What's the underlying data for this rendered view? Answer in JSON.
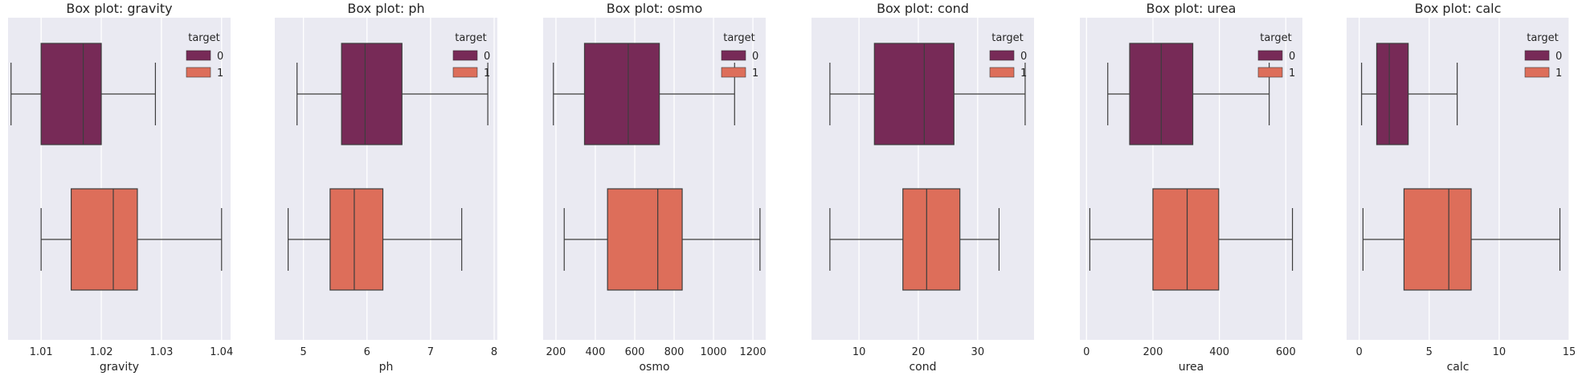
{
  "figure": {
    "background": "#ffffff",
    "plot_background": "#eaeaf2",
    "grid_color": "#ffffff",
    "line_color": "#3d3d3d"
  },
  "chart_data": [
    {
      "type": "box",
      "title": "Box plot: gravity",
      "xlabel": "gravity",
      "xlim": [
        1.0045,
        1.0415
      ],
      "ticks": [
        1.01,
        1.02,
        1.03,
        1.04
      ],
      "tick_labels": [
        "1.01",
        "1.02",
        "1.03",
        "1.04"
      ],
      "legend": {
        "title": "target",
        "position": "upper right",
        "entries": [
          "0",
          "1"
        ]
      },
      "series": [
        {
          "name": "0",
          "color": "#772a57",
          "whisker_low": 1.005,
          "q1": 1.01,
          "median": 1.017,
          "q3": 1.02,
          "whisker_high": 1.029
        },
        {
          "name": "1",
          "color": "#dd6e5a",
          "whisker_low": 1.01,
          "q1": 1.015,
          "median": 1.022,
          "q3": 1.026,
          "whisker_high": 1.04
        }
      ]
    },
    {
      "type": "box",
      "title": "Box plot: ph",
      "xlabel": "ph",
      "xlim": [
        4.55,
        8.05
      ],
      "ticks": [
        5,
        6,
        7,
        8
      ],
      "tick_labels": [
        "5",
        "6",
        "7",
        "8"
      ],
      "legend": {
        "title": "target",
        "position": "upper right",
        "entries": [
          "0",
          "1"
        ]
      },
      "series": [
        {
          "name": "0",
          "color": "#772a57",
          "whisker_low": 4.9,
          "q1": 5.6,
          "median": 5.97,
          "q3": 6.55,
          "whisker_high": 7.9
        },
        {
          "name": "1",
          "color": "#dd6e5a",
          "whisker_low": 4.76,
          "q1": 5.42,
          "median": 5.8,
          "q3": 6.25,
          "whisker_high": 7.49
        }
      ]
    },
    {
      "type": "box",
      "title": "Box plot: osmo",
      "xlabel": "osmo",
      "xlim": [
        135,
        1265
      ],
      "ticks": [
        200,
        400,
        600,
        800,
        1000,
        1200
      ],
      "tick_labels": [
        "200",
        "400",
        "600",
        "800",
        "1000",
        "1200"
      ],
      "legend": {
        "title": "target",
        "position": "upper right",
        "entries": [
          "0",
          "1"
        ]
      },
      "series": [
        {
          "name": "0",
          "color": "#772a57",
          "whisker_low": 187,
          "q1": 345,
          "median": 567,
          "q3": 725,
          "whisker_high": 1107
        },
        {
          "name": "1",
          "color": "#dd6e5a",
          "whisker_low": 242,
          "q1": 462,
          "median": 717,
          "q3": 841,
          "whisker_high": 1236
        }
      ]
    },
    {
      "type": "box",
      "title": "Box plot: cond",
      "xlabel": "cond",
      "xlim": [
        2.0,
        39.5
      ],
      "ticks": [
        10,
        20,
        30
      ],
      "tick_labels": [
        "10",
        "20",
        "30"
      ],
      "legend": {
        "title": "target",
        "position": "upper right",
        "entries": [
          "0",
          "1"
        ]
      },
      "series": [
        {
          "name": "0",
          "color": "#772a57",
          "whisker_low": 5.1,
          "q1": 12.6,
          "median": 21.0,
          "q3": 26.0,
          "whisker_high": 38.0
        },
        {
          "name": "1",
          "color": "#dd6e5a",
          "whisker_low": 5.1,
          "q1": 17.4,
          "median": 21.4,
          "q3": 27.0,
          "whisker_high": 33.6
        }
      ]
    },
    {
      "type": "box",
      "title": "Box plot: urea",
      "xlabel": "urea",
      "xlim": [
        -20,
        650
      ],
      "ticks": [
        0,
        200,
        400,
        600
      ],
      "tick_labels": [
        "0",
        "200",
        "400",
        "600"
      ],
      "legend": {
        "title": "target",
        "position": "upper right",
        "entries": [
          "0",
          "1"
        ]
      },
      "series": [
        {
          "name": "0",
          "color": "#772a57",
          "whisker_low": 64,
          "q1": 130,
          "median": 225,
          "q3": 320,
          "whisker_high": 550
        },
        {
          "name": "1",
          "color": "#dd6e5a",
          "whisker_low": 10,
          "q1": 200,
          "median": 303,
          "q3": 398,
          "whisker_high": 620
        }
      ]
    },
    {
      "type": "box",
      "title": "Box plot: calc",
      "xlabel": "calc",
      "xlim": [
        -0.9,
        15.0
      ],
      "ticks": [
        0,
        5,
        10,
        15
      ],
      "tick_labels": [
        "0",
        "5",
        "10",
        "15"
      ],
      "legend": {
        "title": "target",
        "position": "upper right",
        "entries": [
          "0",
          "1"
        ]
      },
      "series": [
        {
          "name": "0",
          "color": "#772a57",
          "whisker_low": 0.17,
          "q1": 1.25,
          "median": 2.15,
          "q3": 3.5,
          "whisker_high": 7.0
        },
        {
          "name": "1",
          "color": "#dd6e5a",
          "whisker_low": 0.27,
          "q1": 3.2,
          "median": 6.4,
          "q3": 8.0,
          "whisker_high": 14.34
        }
      ]
    }
  ]
}
